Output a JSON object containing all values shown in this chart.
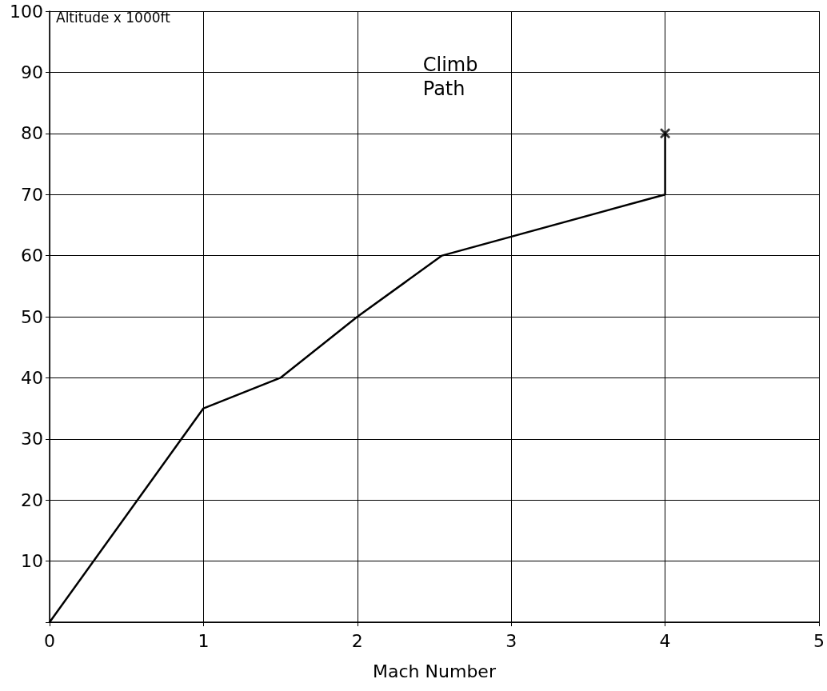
{
  "chart_data": {
    "type": "line",
    "title": "Climb\nPath",
    "xlabel": "Mach Number",
    "ylabel": "Altitude x 1000ft",
    "series": [
      {
        "color": "#000000",
        "x": [
          0,
          1,
          1.5,
          2,
          2.55,
          4,
          4
        ],
        "values": [
          0,
          35,
          40,
          50,
          60,
          70,
          80
        ],
        "marker": "none"
      },
      {
        "type": "scatter",
        "color": "#000000",
        "x": [
          4
        ],
        "values": [
          80
        ],
        "marker": "cross"
      }
    ],
    "xlim": [
      0,
      5
    ],
    "xticks": [
      0,
      1,
      2,
      3,
      4,
      5
    ],
    "ylim": [
      0,
      100
    ],
    "yticks": [
      {
        "value": 0,
        "label": null
      },
      10,
      20,
      30,
      40,
      50,
      60,
      70,
      80,
      90,
      100
    ],
    "grid": true
  }
}
